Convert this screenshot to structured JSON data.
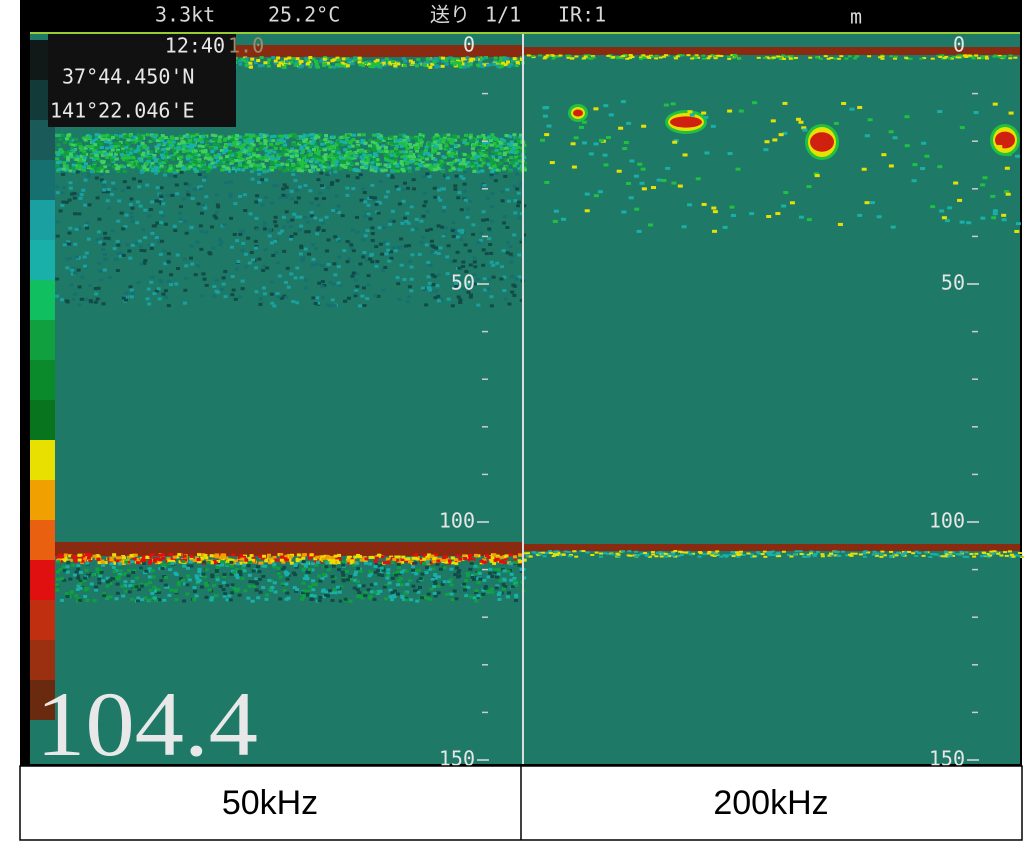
{
  "header": {
    "speed": "3.3kt",
    "temperature": "25.2°C",
    "feed": "送り",
    "feed_ratio": "1/1",
    "ir": "IR:1",
    "unit": "m"
  },
  "info": {
    "time": "12:40",
    "range": "1.0",
    "latitude": "37°44.450'N",
    "longitude": "141°22.046'E"
  },
  "depth": "104.4",
  "panels": [
    {
      "label": "50kHz",
      "scale": [
        "0",
        "50",
        "100",
        "150"
      ]
    },
    {
      "label": "200kHz",
      "scale": [
        "0",
        "50",
        "100",
        "150"
      ]
    }
  ]
}
